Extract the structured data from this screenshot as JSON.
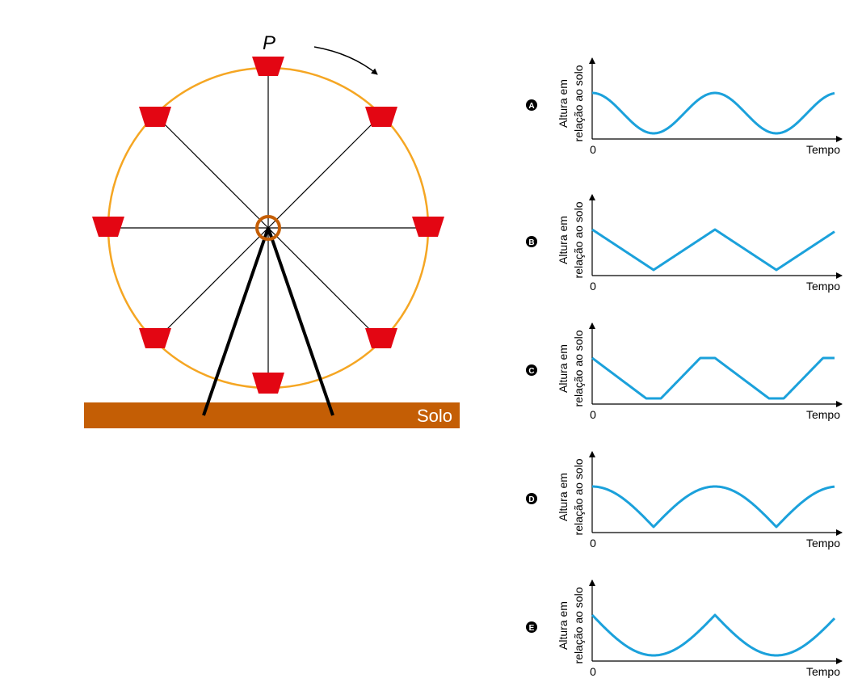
{
  "wheel": {
    "point_label": "P",
    "ground_label": "Solo",
    "colors": {
      "rim": "#F5A623",
      "gondola": "#E30613",
      "ground": "#C45E05",
      "hub": "#C45E05",
      "spoke": "#000000"
    }
  },
  "options": [
    {
      "letter": "A",
      "ylabel_line1": "Altura em",
      "ylabel_line2": "relação ao solo",
      "origin": "0",
      "xlabel": "Tempo",
      "curve": "sine"
    },
    {
      "letter": "B",
      "ylabel_line1": "Altura em",
      "ylabel_line2": "relação ao solo",
      "origin": "0",
      "xlabel": "Tempo",
      "curve": "triangle"
    },
    {
      "letter": "C",
      "ylabel_line1": "Altura em",
      "ylabel_line2": "relação ao solo",
      "origin": "0",
      "xlabel": "Tempo",
      "curve": "trapezoid"
    },
    {
      "letter": "D",
      "ylabel_line1": "Altura em",
      "ylabel_line2": "relação ao solo",
      "origin": "0",
      "xlabel": "Tempo",
      "curve": "arches"
    },
    {
      "letter": "E",
      "ylabel_line1": "Altura em",
      "ylabel_line2": "relação ao solo",
      "origin": "0",
      "xlabel": "Tempo",
      "curve": "bowls"
    }
  ],
  "curve_color": "#1BA1DB"
}
